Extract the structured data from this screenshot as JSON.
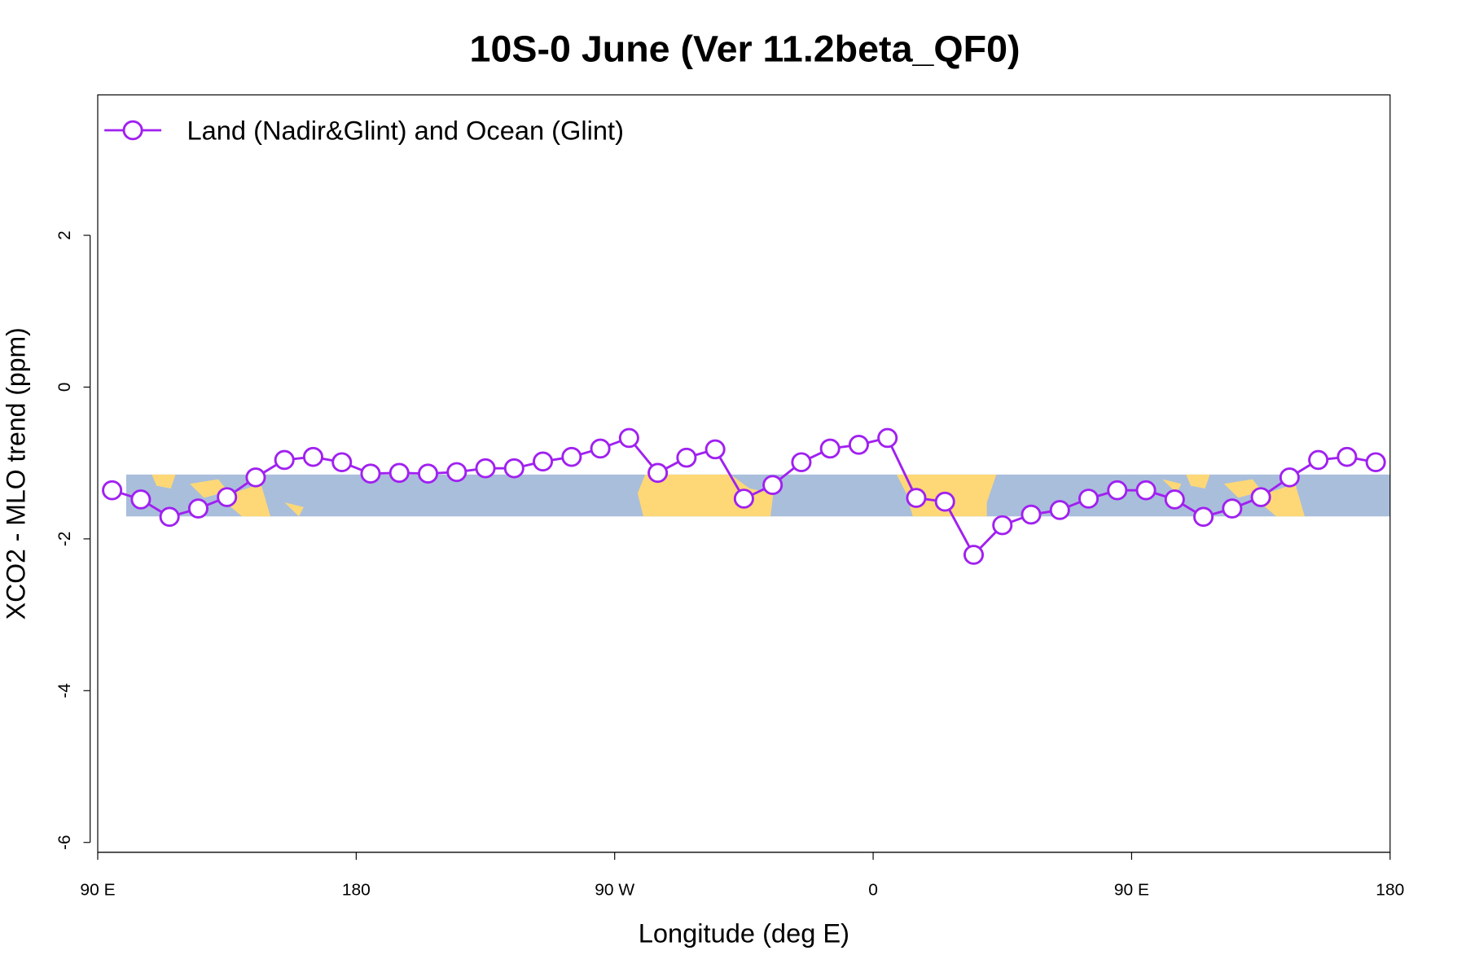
{
  "chart_data": {
    "type": "line",
    "title": "10S-0 June (Ver 11.2beta_QF0)",
    "x_label": "Longitude (deg E)",
    "y_label": "XCO2 - MLO trend (ppm)",
    "x": [
      95,
      105,
      115,
      125,
      135,
      145,
      155,
      165,
      175,
      185,
      195,
      205,
      215,
      225,
      235,
      245,
      255,
      265,
      275,
      285,
      295,
      305,
      315,
      325,
      335,
      345,
      355,
      365,
      375,
      385,
      395,
      405,
      415,
      425,
      435,
      445,
      455,
      465,
      475,
      485,
      495,
      505,
      515,
      525,
      535
    ],
    "series": [
      {
        "name": "Land (Nadir&Glint) and Ocean (Glint)",
        "color": "#a020f0",
        "values": [
          -1.36,
          -1.48,
          -1.71,
          -1.6,
          -1.45,
          -1.19,
          -0.96,
          -0.92,
          -0.99,
          -1.14,
          -1.13,
          -1.14,
          -1.12,
          -1.07,
          -1.07,
          -0.98,
          -0.92,
          -0.81,
          -0.67,
          -1.13,
          -0.93,
          -0.82,
          -1.47,
          -1.29,
          -0.99,
          -0.81,
          -0.76,
          -0.67,
          -1.46,
          -1.51,
          -2.21,
          -1.82,
          -1.68,
          -1.62,
          -1.47,
          -1.36,
          -1.36,
          -1.48,
          -1.71,
          -1.6,
          -1.45,
          -1.19,
          -0.96,
          -0.92,
          -0.99
        ]
      }
    ],
    "xlim": [
      90,
      540
    ],
    "xticks": [
      {
        "value": 90,
        "label": "90 E"
      },
      180,
      {
        "value": 270,
        "label": "90 W"
      },
      {
        "value": 360,
        "label": "0"
      },
      {
        "value": 450,
        "label": "90 E"
      },
      {
        "value": 540,
        "label": "180"
      }
    ],
    "ylim": [
      -6.13,
      3.85
    ],
    "yticks": [
      -6,
      -4,
      -2,
      0,
      2
    ],
    "legend": "top-left"
  }
}
